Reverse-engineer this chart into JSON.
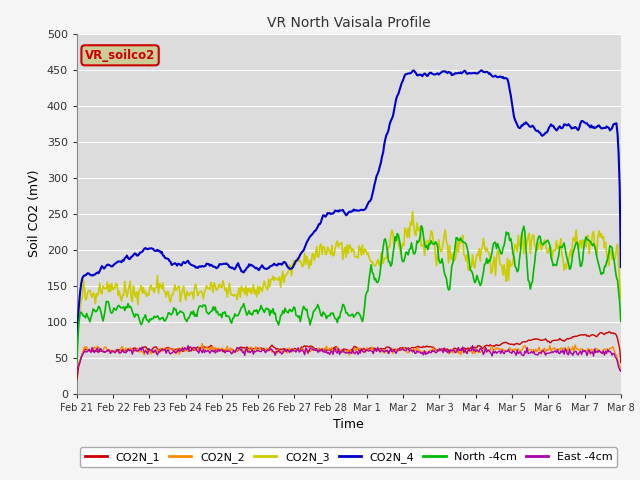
{
  "title": "VR North Vaisala Profile",
  "xlabel": "Time",
  "ylabel": "Soil CO2 (mV)",
  "ylim": [
    0,
    500
  ],
  "plot_bg": "#dcdcdc",
  "fig_bg": "#f5f5f5",
  "grid_color": "#ffffff",
  "annotation_text": "VR_soilco2",
  "annotation_bg": "#cccc99",
  "annotation_border": "#cc0000",
  "legend_labels": [
    "CO2N_1",
    "CO2N_2",
    "CO2N_3",
    "CO2N_4",
    "North -4cm",
    "East -4cm"
  ],
  "line_colors": [
    "#cc0000",
    "#ff8800",
    "#cccc00",
    "#0000cc",
    "#00bb00",
    "#aa00aa"
  ],
  "xtick_labels": [
    "Feb 21",
    "Feb 22",
    "Feb 23",
    "Feb 24",
    "Feb 25",
    "Feb 26",
    "Feb 27",
    "Feb 28",
    "Mar 1",
    "Mar 2",
    "Mar 3",
    "Mar 4",
    "Mar 5",
    "Mar 6",
    "Mar 7",
    "Mar 8"
  ],
  "n_points": 500,
  "seed": 42
}
